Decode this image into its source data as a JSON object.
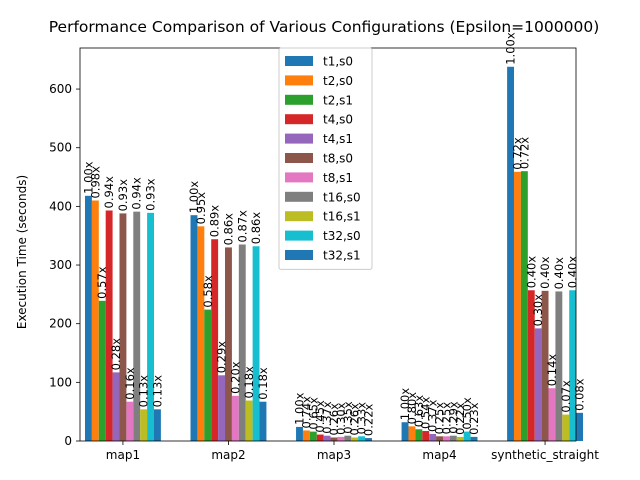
{
  "chart_data": {
    "type": "bar",
    "title": "Performance Comparison of Various Configurations (Epsilon=1000000)",
    "xlabel": "",
    "ylabel": "Execution Time (seconds)",
    "ylim": [
      0,
      670
    ],
    "yticks": [
      0,
      100,
      200,
      300,
      400,
      500,
      600
    ],
    "grid": false,
    "legend_position": "top-center",
    "categories": [
      "map1",
      "map2",
      "map3",
      "map4",
      "synthetic_straight"
    ],
    "series": [
      {
        "name": "t1,s0",
        "color": "#1f77b4",
        "values": [
          418,
          385,
          24,
          32,
          638
        ],
        "labels": [
          "1.00x",
          "1.00x",
          "1.00x",
          "1.00x",
          "1.00x"
        ]
      },
      {
        "name": "t2,s0",
        "color": "#ff7f0e",
        "values": [
          410,
          366,
          18,
          25,
          459
        ],
        "labels": [
          "0.98x",
          "0.95x",
          "0.74x",
          "0.80x",
          "0.72x"
        ]
      },
      {
        "name": "t2,s1",
        "color": "#2ca02c",
        "values": [
          239,
          224,
          16,
          20,
          460
        ],
        "labels": [
          "0.57x",
          "0.58x",
          "0.65x",
          "0.63x",
          "0.72x"
        ]
      },
      {
        "name": "t4,s0",
        "color": "#d62728",
        "values": [
          393,
          344,
          11,
          17,
          257
        ],
        "labels": [
          "0.94x",
          "0.89x",
          "0.45x",
          "0.54x",
          "0.40x"
        ]
      },
      {
        "name": "t4,s1",
        "color": "#9467bd",
        "values": [
          117,
          112,
          9,
          12,
          192
        ],
        "labels": [
          "0.28x",
          "0.29x",
          "0.37x",
          "0.37x",
          "0.30x"
        ]
      },
      {
        "name": "t8,s0",
        "color": "#8c564b",
        "values": [
          388,
          330,
          6,
          8,
          256
        ],
        "labels": [
          "0.93x",
          "0.86x",
          "0.26x",
          "0.25x",
          "0.40x"
        ]
      },
      {
        "name": "t8,s1",
        "color": "#e377c2",
        "values": [
          67,
          77,
          7,
          8,
          90
        ],
        "labels": [
          "0.16x",
          "0.20x",
          "0.30x",
          "0.25x",
          "0.14x"
        ]
      },
      {
        "name": "t16,s0",
        "color": "#7f7f7f",
        "values": [
          391,
          335,
          9,
          9,
          255
        ],
        "labels": [
          "0.94x",
          "0.87x",
          "0.35x",
          "0.29x",
          "0.40x"
        ]
      },
      {
        "name": "t16,s1",
        "color": "#bcbd22",
        "values": [
          54,
          69,
          6,
          7,
          45
        ],
        "labels": [
          "0.13x",
          "0.18x",
          "0.26x",
          "0.22x",
          "0.07x"
        ]
      },
      {
        "name": "t32,s0",
        "color": "#17becf",
        "values": [
          389,
          332,
          8,
          16,
          257
        ],
        "labels": [
          "0.93x",
          "0.86x",
          "0.33x",
          "0.50x",
          "0.40x"
        ]
      },
      {
        "name": "t32,s1",
        "color": "#1f77b4",
        "values": [
          54,
          67,
          5,
          7,
          48
        ],
        "labels": [
          "0.13x",
          "0.18x",
          "0.22x",
          "0.23x",
          "0.08x"
        ]
      }
    ]
  }
}
